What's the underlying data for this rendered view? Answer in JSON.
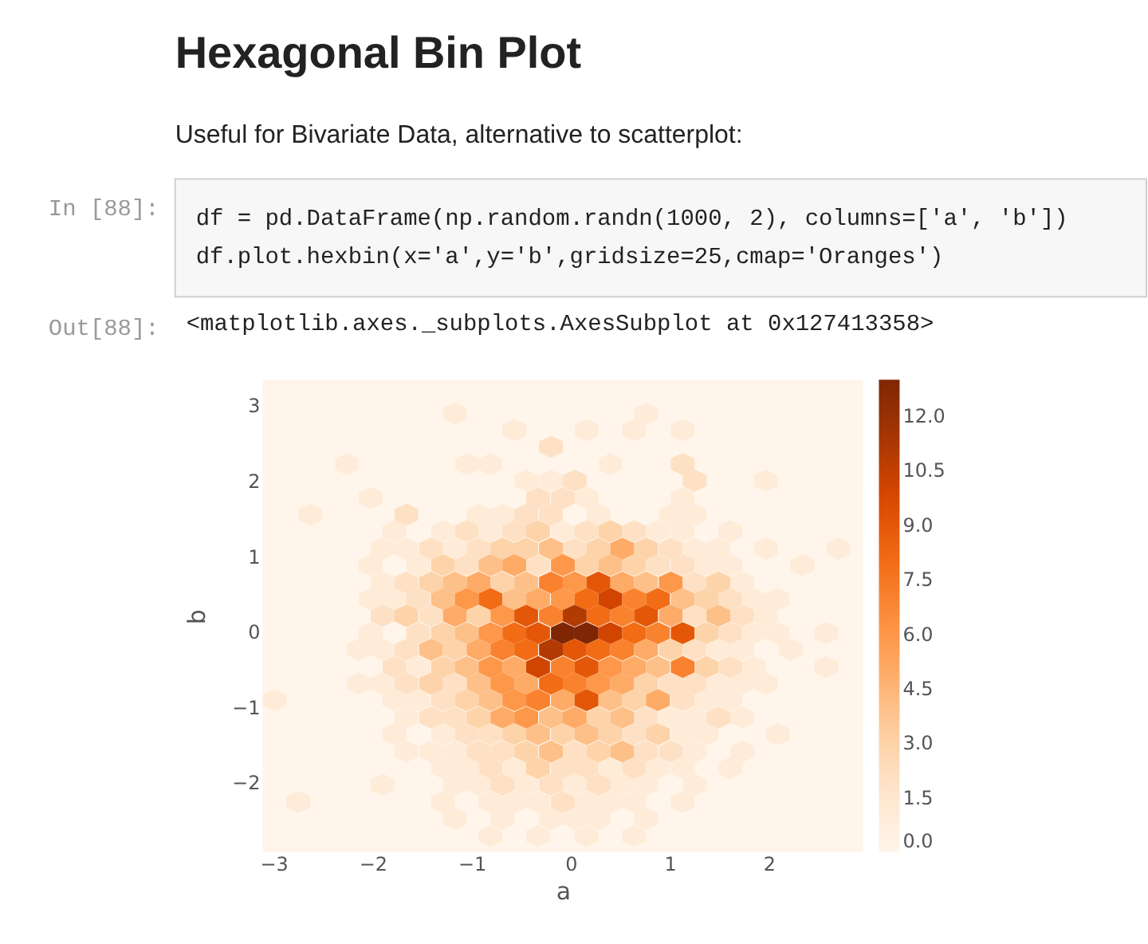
{
  "chart_data": {
    "type": "scatter",
    "title": "Hexagonal Bin Plot",
    "subtitle": "Useful for Bivariate Data, alternative to scatterplot:",
    "annotations": [
      "In [88]:",
      "df = pd.DataFrame(np.random.randn(1000, 2), columns=['a', 'b'])",
      "df.plot.hexbin(x='a',y='b',gridsize=25,cmap='Oranges')",
      "Out[88]:",
      "<matplotlib.axes._subplots.AxesSubplot at 0x127413358>"
    ],
    "xlabel": "a",
    "ylabel": "b",
    "xlim": [
      -3.11,
      2.95
    ],
    "ylim": [
      -2.93,
      3.34
    ],
    "xticks": [
      -3,
      -2,
      -1,
      0,
      1,
      2
    ],
    "yticks": [
      -2,
      -1,
      0,
      1,
      2,
      3
    ],
    "clim": [
      0,
      13
    ],
    "cticks": [
      {
        "value": 0,
        "label": "0.0"
      },
      {
        "value": 1.5,
        "label": "1.5"
      },
      {
        "value": 3,
        "label": "3.0"
      },
      {
        "value": 4.5,
        "label": "4.5"
      },
      {
        "value": 6,
        "label": "6.0"
      },
      {
        "value": 7.5,
        "label": "7.5"
      },
      {
        "value": 9,
        "label": "9.0"
      },
      {
        "value": 10.5,
        "label": "10.5"
      },
      {
        "value": 12,
        "label": "12.0"
      }
    ],
    "grid": false,
    "x": [
      -1.17,
      0.76,
      -0.57,
      0.16,
      0.64,
      1.13,
      -0.2,
      -2.26,
      -1.05,
      -0.81,
      0.4,
      1.13,
      -0.45,
      -0.2,
      0.04,
      1.25,
      1.97,
      -2.02,
      -0.33,
      -0.08,
      0.16,
      1.13,
      -2.63,
      -1.66,
      -0.93,
      -0.69,
      -0.45,
      -0.2,
      0.28,
      1.01,
      1.25,
      -1.78,
      -1.29,
      -1.05,
      -0.81,
      -0.57,
      -0.33,
      -0.08,
      0.16,
      0.4,
      0.64,
      0.88,
      1.13,
      1.61,
      -1.9,
      -1.66,
      -1.41,
      -1.17,
      -0.93,
      -0.69,
      -0.45,
      -0.2,
      0.04,
      0.28,
      0.52,
      0.76,
      1.01,
      1.25,
      1.49,
      1.97,
      2.7,
      -2.02,
      -1.54,
      -1.29,
      -1.05,
      -0.81,
      -0.57,
      -0.33,
      -0.08,
      0.16,
      0.4,
      0.64,
      0.88,
      1.13,
      1.37,
      1.61,
      2.34,
      -1.9,
      -1.66,
      -1.41,
      -1.17,
      -0.93,
      -0.69,
      -0.45,
      -0.2,
      0.04,
      0.28,
      0.52,
      0.76,
      1.01,
      1.25,
      1.49,
      1.73,
      -2.02,
      -1.78,
      -1.54,
      -1.29,
      -1.05,
      -0.81,
      -0.57,
      -0.33,
      -0.08,
      0.16,
      0.4,
      0.64,
      0.88,
      1.13,
      1.37,
      1.61,
      1.85,
      2.09,
      -1.9,
      -1.66,
      -1.41,
      -1.17,
      -0.93,
      -0.69,
      -0.45,
      -0.2,
      0.04,
      0.28,
      0.52,
      0.76,
      1.01,
      1.25,
      1.49,
      1.73,
      1.97,
      -2.02,
      -1.54,
      -1.29,
      -1.05,
      -0.81,
      -0.57,
      -0.33,
      -0.08,
      0.16,
      0.4,
      0.64,
      0.88,
      1.13,
      1.37,
      1.61,
      1.85,
      2.09,
      2.58,
      -2.14,
      -1.9,
      -1.66,
      -1.41,
      -1.17,
      -0.93,
      -0.69,
      -0.45,
      -0.2,
      0.04,
      0.28,
      0.52,
      0.76,
      1.01,
      1.25,
      1.49,
      1.73,
      2.22,
      -1.78,
      -1.54,
      -1.29,
      -1.05,
      -0.81,
      -0.57,
      -0.33,
      -0.08,
      0.16,
      0.4,
      0.64,
      0.88,
      1.13,
      1.37,
      1.61,
      1.85,
      2.58,
      -2.14,
      -1.9,
      -1.66,
      -1.41,
      -1.17,
      -0.93,
      -0.69,
      -0.45,
      -0.2,
      0.04,
      0.28,
      0.52,
      0.76,
      1.01,
      1.25,
      1.49,
      1.73,
      1.97,
      -2.99,
      -1.78,
      -1.54,
      -1.29,
      -1.05,
      -0.81,
      -0.57,
      -0.33,
      -0.08,
      0.16,
      0.4,
      0.64,
      0.88,
      1.13,
      1.37,
      1.61,
      -1.66,
      -1.41,
      -1.17,
      -0.93,
      -0.69,
      -0.45,
      -0.2,
      0.04,
      0.28,
      0.52,
      0.76,
      1.01,
      1.25,
      1.49,
      1.73,
      -1.78,
      -1.29,
      -1.05,
      -0.81,
      -0.57,
      -0.33,
      -0.08,
      0.16,
      0.4,
      0.64,
      0.88,
      1.13,
      1.37,
      2.09,
      -1.66,
      -1.41,
      -1.17,
      -0.93,
      -0.69,
      -0.45,
      -0.2,
      0.04,
      0.28,
      0.52,
      0.76,
      1.01,
      1.25,
      1.73,
      -1.29,
      -1.05,
      -0.81,
      -0.57,
      -0.33,
      -0.08,
      0.16,
      0.4,
      0.64,
      0.88,
      1.13,
      1.61,
      -1.9,
      -1.17,
      -0.93,
      -0.69,
      -0.45,
      -0.2,
      0.04,
      0.28,
      0.52,
      0.76,
      1.25,
      -2.75,
      -1.29,
      -0.81,
      -0.57,
      -0.33,
      -0.08,
      0.16,
      0.4,
      0.64,
      1.13,
      -1.17,
      -0.69,
      -0.2,
      0.04,
      0.28,
      0.76,
      -0.81,
      -0.33,
      0.16,
      0.64
    ],
    "values": [
      2.89,
      2.89,
      2.67,
      2.67,
      2.67,
      2.67,
      2.45,
      2.22,
      2.22,
      2.22,
      2.22,
      2.22,
      2.0,
      2.0,
      2.0,
      2.0,
      2.0,
      1.77,
      1.77,
      1.77,
      1.77,
      1.77,
      1.55,
      1.55,
      1.55,
      1.55,
      1.55,
      1.55,
      1.55,
      1.55,
      1.55,
      1.33,
      1.33,
      1.33,
      1.33,
      1.33,
      1.33,
      1.33,
      1.33,
      1.33,
      1.33,
      1.33,
      1.33,
      1.33,
      1.1,
      1.1,
      1.1,
      1.1,
      1.1,
      1.1,
      1.1,
      1.1,
      1.1,
      1.1,
      1.1,
      1.1,
      1.1,
      1.1,
      1.1,
      1.1,
      1.1,
      0.88,
      0.88,
      0.88,
      0.88,
      0.88,
      0.88,
      0.88,
      0.88,
      0.88,
      0.88,
      0.88,
      0.88,
      0.88,
      0.88,
      0.88,
      0.88,
      0.65,
      0.65,
      0.65,
      0.65,
      0.65,
      0.65,
      0.65,
      0.65,
      0.65,
      0.65,
      0.65,
      0.65,
      0.65,
      0.65,
      0.65,
      0.65,
      0.43,
      0.43,
      0.43,
      0.43,
      0.43,
      0.43,
      0.43,
      0.43,
      0.43,
      0.43,
      0.43,
      0.43,
      0.43,
      0.43,
      0.43,
      0.43,
      0.43,
      0.43,
      0.21,
      0.21,
      0.21,
      0.21,
      0.21,
      0.21,
      0.21,
      0.21,
      0.21,
      0.21,
      0.21,
      0.21,
      0.21,
      0.21,
      0.21,
      0.21,
      0.21,
      -0.02,
      -0.02,
      -0.02,
      -0.02,
      -0.02,
      -0.02,
      -0.02,
      -0.02,
      -0.02,
      -0.02,
      -0.02,
      -0.02,
      -0.02,
      -0.02,
      -0.02,
      -0.02,
      -0.02,
      -0.02,
      -0.24,
      -0.24,
      -0.24,
      -0.24,
      -0.24,
      -0.24,
      -0.24,
      -0.24,
      -0.24,
      -0.24,
      -0.24,
      -0.24,
      -0.24,
      -0.24,
      -0.24,
      -0.24,
      -0.24,
      -0.24,
      -0.47,
      -0.47,
      -0.47,
      -0.47,
      -0.47,
      -0.47,
      -0.47,
      -0.47,
      -0.47,
      -0.47,
      -0.47,
      -0.47,
      -0.47,
      -0.47,
      -0.47,
      -0.47,
      -0.47,
      -0.69,
      -0.69,
      -0.69,
      -0.69,
      -0.69,
      -0.69,
      -0.69,
      -0.69,
      -0.69,
      -0.69,
      -0.69,
      -0.69,
      -0.69,
      -0.69,
      -0.69,
      -0.69,
      -0.69,
      -0.69,
      -0.91,
      -0.91,
      -0.91,
      -0.91,
      -0.91,
      -0.91,
      -0.91,
      -0.91,
      -0.91,
      -0.91,
      -0.91,
      -0.91,
      -0.91,
      -0.91,
      -0.91,
      -0.91,
      -1.14,
      -1.14,
      -1.14,
      -1.14,
      -1.14,
      -1.14,
      -1.14,
      -1.14,
      -1.14,
      -1.14,
      -1.14,
      -1.14,
      -1.14,
      -1.14,
      -1.14,
      -1.36,
      -1.36,
      -1.36,
      -1.36,
      -1.36,
      -1.36,
      -1.36,
      -1.36,
      -1.36,
      -1.36,
      -1.36,
      -1.36,
      -1.36,
      -1.36,
      -1.59,
      -1.59,
      -1.59,
      -1.59,
      -1.59,
      -1.59,
      -1.59,
      -1.59,
      -1.59,
      -1.59,
      -1.59,
      -1.59,
      -1.59,
      -1.59,
      -1.81,
      -1.81,
      -1.81,
      -1.81,
      -1.81,
      -1.81,
      -1.81,
      -1.81,
      -1.81,
      -1.81,
      -1.81,
      -1.81,
      -2.03,
      -2.03,
      -2.03,
      -2.03,
      -2.03,
      -2.03,
      -2.03,
      -2.03,
      -2.03,
      -2.03,
      -2.03,
      -2.26,
      -2.26,
      -2.26,
      -2.26,
      -2.26,
      -2.26,
      -2.26,
      -2.26,
      -2.26,
      -2.26,
      -2.48,
      -2.48,
      -2.48,
      -2.48,
      -2.48,
      -2.48,
      -2.71,
      -2.71,
      -2.71,
      -2.71
    ],
    "cvalues": [
      1,
      1,
      1,
      1,
      1,
      1,
      2,
      1,
      1,
      1,
      1,
      2,
      1,
      1,
      2,
      2,
      1,
      1,
      2,
      2,
      1,
      1,
      1,
      2,
      1,
      1,
      2,
      2,
      1,
      1,
      1,
      1,
      1,
      2,
      1,
      2,
      3,
      1,
      2,
      3,
      2,
      1,
      1,
      1,
      1,
      1,
      2,
      1,
      2,
      3,
      3,
      4,
      2,
      3,
      5,
      3,
      2,
      1,
      1,
      1,
      1,
      1,
      1,
      3,
      2,
      4,
      5,
      2,
      6,
      3,
      4,
      3,
      2,
      2,
      1,
      1,
      1,
      1,
      2,
      3,
      4,
      5,
      3,
      4,
      7,
      6,
      9,
      5,
      4,
      6,
      2,
      3,
      1,
      1,
      1,
      2,
      4,
      6,
      8,
      4,
      5,
      6,
      8,
      10,
      7,
      8,
      4,
      3,
      2,
      1,
      1,
      2,
      3,
      2,
      5,
      3,
      6,
      9,
      7,
      11,
      8,
      7,
      9,
      5,
      2,
      4,
      2,
      1,
      1,
      2,
      3,
      4,
      6,
      8,
      9,
      13,
      13,
      10,
      8,
      7,
      9,
      3,
      2,
      1,
      1,
      1,
      1,
      1,
      2,
      4,
      3,
      5,
      7,
      8,
      11,
      9,
      8,
      7,
      5,
      3,
      2,
      1,
      1,
      1,
      2,
      1,
      3,
      4,
      6,
      5,
      10,
      7,
      9,
      6,
      5,
      4,
      7,
      3,
      2,
      1,
      1,
      1,
      1,
      2,
      3,
      2,
      4,
      6,
      5,
      8,
      7,
      6,
      5,
      3,
      2,
      2,
      1,
      1,
      1,
      1,
      1,
      1,
      2,
      3,
      4,
      6,
      7,
      5,
      9,
      4,
      3,
      5,
      2,
      1,
      1,
      1,
      2,
      2,
      3,
      5,
      6,
      4,
      5,
      3,
      4,
      2,
      1,
      1,
      2,
      1,
      1,
      1,
      2,
      2,
      3,
      4,
      3,
      4,
      3,
      2,
      3,
      1,
      1,
      1,
      1,
      1,
      1,
      2,
      2,
      3,
      4,
      2,
      3,
      4,
      2,
      2,
      1,
      1,
      1,
      1,
      2,
      1,
      3,
      2,
      2,
      1,
      2,
      1,
      1,
      1,
      1,
      1,
      1,
      2,
      1,
      2,
      1,
      2,
      1,
      1,
      1,
      1,
      1,
      1,
      1,
      1,
      2,
      1,
      1,
      1,
      1,
      1,
      1,
      1,
      1,
      1,
      1,
      1,
      1,
      1,
      1
    ]
  }
}
